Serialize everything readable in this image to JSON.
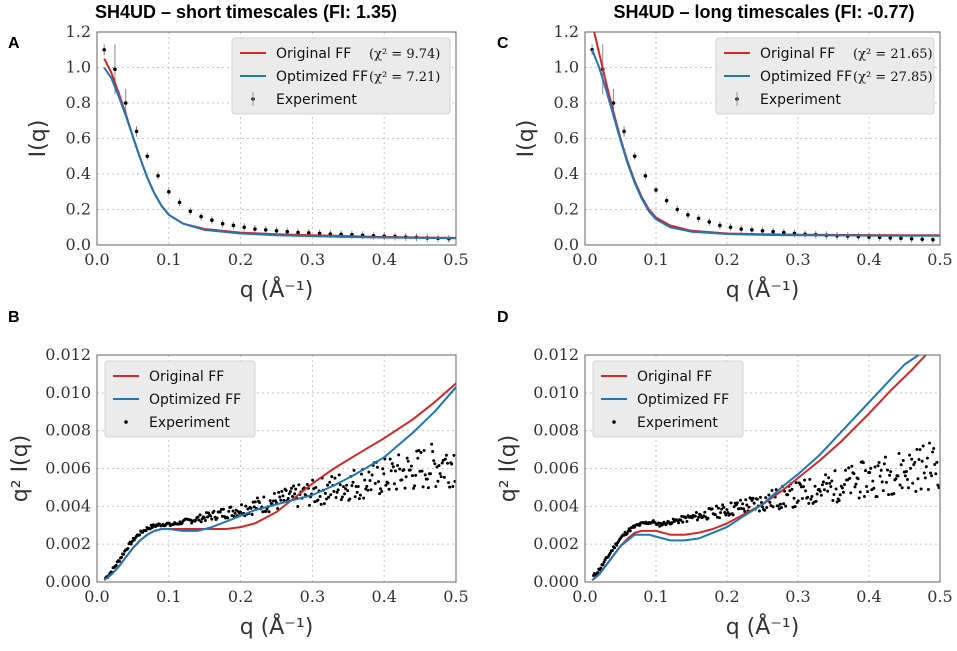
{
  "colors": {
    "original": "#d62728",
    "optimized": "#1f77b4",
    "experiment": "#000000",
    "legend_bg": "#ebebeb"
  },
  "chart_data": [
    {
      "id": "A",
      "type": "line",
      "panel_label": "A",
      "title": "SH4UD – short timescales  (FI: 1.35)",
      "xlabel": "q (Å⁻¹)",
      "ylabel": "I(q)",
      "xlim": [
        0,
        0.5
      ],
      "ylim": [
        0,
        1.2
      ],
      "xticks": [
        0.0,
        0.1,
        0.2,
        0.3,
        0.4,
        0.5
      ],
      "yticks": [
        0.0,
        0.2,
        0.4,
        0.6,
        0.8,
        1.0,
        1.2
      ],
      "xtick_labels": [
        "0.0",
        "0.1",
        "0.2",
        "0.3",
        "0.4",
        "0.5"
      ],
      "ytick_labels": [
        "0.0",
        "0.2",
        "0.4",
        "0.6",
        "0.8",
        "1.0",
        "1.2"
      ],
      "legend": {
        "position": "top-right",
        "entries": [
          {
            "label": "Original FF",
            "chi": "(χ² = 9.74)"
          },
          {
            "label": "Optimized FF",
            "chi": "(χ² = 7.21)"
          },
          {
            "label": "Experiment",
            "chi": ""
          }
        ]
      },
      "series": [
        {
          "name": "Original FF",
          "x": [
            0.01,
            0.02,
            0.03,
            0.04,
            0.05,
            0.06,
            0.07,
            0.08,
            0.09,
            0.1,
            0.12,
            0.15,
            0.2,
            0.25,
            0.3,
            0.35,
            0.4,
            0.45,
            0.5
          ],
          "y": [
            1.05,
            0.97,
            0.86,
            0.74,
            0.61,
            0.49,
            0.38,
            0.29,
            0.22,
            0.17,
            0.12,
            0.09,
            0.07,
            0.06,
            0.055,
            0.05,
            0.045,
            0.042,
            0.04
          ]
        },
        {
          "name": "Optimized FF",
          "x": [
            0.01,
            0.02,
            0.03,
            0.04,
            0.05,
            0.06,
            0.07,
            0.08,
            0.09,
            0.1,
            0.12,
            0.15,
            0.2,
            0.25,
            0.3,
            0.35,
            0.4,
            0.45,
            0.5
          ],
          "y": [
            1.0,
            0.94,
            0.84,
            0.73,
            0.61,
            0.49,
            0.38,
            0.29,
            0.22,
            0.17,
            0.12,
            0.085,
            0.065,
            0.055,
            0.05,
            0.045,
            0.042,
            0.04,
            0.038
          ]
        },
        {
          "name": "Experiment",
          "x": [
            0.01,
            0.025,
            0.04,
            0.055,
            0.07,
            0.085,
            0.1,
            0.115,
            0.13,
            0.145,
            0.16,
            0.175,
            0.19,
            0.205,
            0.22,
            0.235,
            0.25,
            0.265,
            0.28,
            0.295,
            0.31,
            0.325,
            0.34,
            0.355,
            0.37,
            0.385,
            0.4,
            0.415,
            0.43,
            0.445,
            0.46,
            0.475,
            0.49
          ],
          "y": [
            1.1,
            0.99,
            0.8,
            0.64,
            0.5,
            0.39,
            0.3,
            0.24,
            0.19,
            0.16,
            0.14,
            0.12,
            0.11,
            0.1,
            0.09,
            0.085,
            0.08,
            0.075,
            0.07,
            0.068,
            0.065,
            0.062,
            0.06,
            0.058,
            0.055,
            0.052,
            0.05,
            0.048,
            0.045,
            0.043,
            0.04,
            0.038,
            0.035
          ]
        }
      ]
    },
    {
      "id": "C",
      "type": "line",
      "panel_label": "C",
      "title": "SH4UD – long timescales  (FI: -0.77)",
      "xlabel": "q (Å⁻¹)",
      "ylabel": "I(q)",
      "xlim": [
        0,
        0.5
      ],
      "ylim": [
        0,
        1.2
      ],
      "xticks": [
        0.0,
        0.1,
        0.2,
        0.3,
        0.4,
        0.5
      ],
      "yticks": [
        0.0,
        0.2,
        0.4,
        0.6,
        0.8,
        1.0,
        1.2
      ],
      "xtick_labels": [
        "0.0",
        "0.1",
        "0.2",
        "0.3",
        "0.4",
        "0.5"
      ],
      "ytick_labels": [
        "0.0",
        "0.2",
        "0.4",
        "0.6",
        "0.8",
        "1.0",
        "1.2"
      ],
      "legend": {
        "position": "top-right",
        "entries": [
          {
            "label": "Original FF",
            "chi": "(χ² = 21.65)"
          },
          {
            "label": "Optimized FF",
            "chi": "(χ² = 27.85)"
          },
          {
            "label": "Experiment",
            "chi": ""
          }
        ]
      },
      "series": [
        {
          "name": "Original FF",
          "x": [
            0.01,
            0.02,
            0.03,
            0.04,
            0.05,
            0.06,
            0.07,
            0.08,
            0.09,
            0.1,
            0.12,
            0.15,
            0.2,
            0.25,
            0.3,
            0.35,
            0.4,
            0.45,
            0.5
          ],
          "y": [
            1.25,
            1.08,
            0.91,
            0.75,
            0.6,
            0.47,
            0.36,
            0.27,
            0.2,
            0.155,
            0.11,
            0.08,
            0.065,
            0.06,
            0.058,
            0.057,
            0.056,
            0.055,
            0.055
          ]
        },
        {
          "name": "Optimized FF",
          "x": [
            0.01,
            0.02,
            0.03,
            0.04,
            0.05,
            0.06,
            0.07,
            0.08,
            0.09,
            0.1,
            0.12,
            0.15,
            0.2,
            0.25,
            0.3,
            0.35,
            0.4,
            0.45,
            0.5
          ],
          "y": [
            1.1,
            1.0,
            0.87,
            0.73,
            0.59,
            0.46,
            0.35,
            0.26,
            0.19,
            0.145,
            0.1,
            0.075,
            0.062,
            0.057,
            0.055,
            0.054,
            0.053,
            0.052,
            0.052
          ]
        },
        {
          "name": "Experiment",
          "x": [
            0.01,
            0.025,
            0.04,
            0.055,
            0.07,
            0.085,
            0.1,
            0.115,
            0.13,
            0.145,
            0.16,
            0.175,
            0.19,
            0.205,
            0.22,
            0.235,
            0.25,
            0.265,
            0.28,
            0.295,
            0.31,
            0.325,
            0.34,
            0.355,
            0.37,
            0.385,
            0.4,
            0.415,
            0.43,
            0.445,
            0.46,
            0.475,
            0.49
          ],
          "y": [
            1.1,
            0.99,
            0.8,
            0.64,
            0.5,
            0.39,
            0.31,
            0.25,
            0.2,
            0.17,
            0.15,
            0.13,
            0.11,
            0.1,
            0.09,
            0.085,
            0.08,
            0.075,
            0.07,
            0.065,
            0.06,
            0.058,
            0.055,
            0.052,
            0.05,
            0.048,
            0.045,
            0.043,
            0.04,
            0.038,
            0.035,
            0.033,
            0.03
          ]
        }
      ]
    },
    {
      "id": "B",
      "type": "line",
      "panel_label": "B",
      "title": "",
      "xlabel": "q (Å⁻¹)",
      "ylabel": "q² I(q)",
      "xlim": [
        0,
        0.5
      ],
      "ylim": [
        0,
        0.012
      ],
      "xticks": [
        0.0,
        0.1,
        0.2,
        0.3,
        0.4,
        0.5
      ],
      "yticks": [
        0.0,
        0.002,
        0.004,
        0.006,
        0.008,
        0.01,
        0.012
      ],
      "xtick_labels": [
        "0.0",
        "0.1",
        "0.2",
        "0.3",
        "0.4",
        "0.5"
      ],
      "ytick_labels": [
        "0.000",
        "0.002",
        "0.004",
        "0.006",
        "0.008",
        "0.010",
        "0.012"
      ],
      "legend": {
        "position": "top-left",
        "entries": [
          {
            "label": "Original FF",
            "chi": ""
          },
          {
            "label": "Optimized FF",
            "chi": ""
          },
          {
            "label": "Experiment",
            "chi": ""
          }
        ]
      },
      "series": [
        {
          "name": "Original FF",
          "x": [
            0.01,
            0.02,
            0.03,
            0.04,
            0.05,
            0.06,
            0.07,
            0.08,
            0.09,
            0.1,
            0.12,
            0.14,
            0.16,
            0.18,
            0.2,
            0.22,
            0.25,
            0.28,
            0.3,
            0.33,
            0.36,
            0.4,
            0.44,
            0.47,
            0.5
          ],
          "y": [
            0.0001,
            0.0004,
            0.0008,
            0.0013,
            0.0018,
            0.0022,
            0.0025,
            0.0027,
            0.0028,
            0.0028,
            0.0028,
            0.0028,
            0.0028,
            0.0028,
            0.0029,
            0.0031,
            0.0037,
            0.0046,
            0.0052,
            0.006,
            0.0067,
            0.0076,
            0.0086,
            0.0095,
            0.0105
          ]
        },
        {
          "name": "Optimized FF",
          "x": [
            0.01,
            0.02,
            0.03,
            0.04,
            0.05,
            0.06,
            0.07,
            0.08,
            0.09,
            0.1,
            0.12,
            0.14,
            0.16,
            0.18,
            0.2,
            0.22,
            0.25,
            0.28,
            0.3,
            0.33,
            0.36,
            0.4,
            0.44,
            0.47,
            0.5
          ],
          "y": [
            0.0001,
            0.0004,
            0.0008,
            0.0013,
            0.0018,
            0.0022,
            0.0025,
            0.0027,
            0.0028,
            0.0028,
            0.0027,
            0.0027,
            0.0029,
            0.0032,
            0.0035,
            0.0038,
            0.0041,
            0.0044,
            0.0046,
            0.0051,
            0.0057,
            0.0066,
            0.0079,
            0.009,
            0.0103
          ]
        }
      ],
      "scatter_seed": 7,
      "scatter_model": "q2I-short"
    },
    {
      "id": "D",
      "type": "line",
      "panel_label": "D",
      "title": "",
      "xlabel": "q (Å⁻¹)",
      "ylabel": "q² I(q)",
      "xlim": [
        0,
        0.5
      ],
      "ylim": [
        0,
        0.012
      ],
      "xticks": [
        0.0,
        0.1,
        0.2,
        0.3,
        0.4,
        0.5
      ],
      "yticks": [
        0.0,
        0.002,
        0.004,
        0.006,
        0.008,
        0.01,
        0.012
      ],
      "xtick_labels": [
        "0.0",
        "0.1",
        "0.2",
        "0.3",
        "0.4",
        "0.5"
      ],
      "ytick_labels": [
        "0.000",
        "0.002",
        "0.004",
        "0.006",
        "0.008",
        "0.010",
        "0.012"
      ],
      "legend": {
        "position": "top-left",
        "entries": [
          {
            "label": "Original FF",
            "chi": ""
          },
          {
            "label": "Optimized FF",
            "chi": ""
          },
          {
            "label": "Experiment",
            "chi": ""
          }
        ]
      },
      "series": [
        {
          "name": "Original FF",
          "x": [
            0.01,
            0.02,
            0.03,
            0.04,
            0.05,
            0.06,
            0.07,
            0.08,
            0.09,
            0.1,
            0.12,
            0.14,
            0.16,
            0.18,
            0.2,
            0.22,
            0.25,
            0.28,
            0.3,
            0.33,
            0.36,
            0.4,
            0.43,
            0.46,
            0.48
          ],
          "y": [
            0.0001,
            0.0004,
            0.0009,
            0.0014,
            0.0019,
            0.0023,
            0.0026,
            0.0027,
            0.0027,
            0.0027,
            0.0025,
            0.0025,
            0.0026,
            0.0028,
            0.0031,
            0.0035,
            0.0041,
            0.0049,
            0.0055,
            0.0064,
            0.0074,
            0.0089,
            0.0101,
            0.0112,
            0.012
          ]
        },
        {
          "name": "Optimized FF",
          "x": [
            0.01,
            0.02,
            0.03,
            0.04,
            0.05,
            0.06,
            0.07,
            0.08,
            0.09,
            0.1,
            0.12,
            0.14,
            0.16,
            0.18,
            0.2,
            0.22,
            0.25,
            0.28,
            0.3,
            0.33,
            0.36,
            0.4,
            0.43,
            0.45,
            0.47
          ],
          "y": [
            0.0001,
            0.0004,
            0.0009,
            0.0014,
            0.0019,
            0.0022,
            0.0025,
            0.0025,
            0.0025,
            0.0024,
            0.0022,
            0.0022,
            0.0023,
            0.0026,
            0.0029,
            0.0034,
            0.0041,
            0.0051,
            0.0057,
            0.0067,
            0.0079,
            0.0095,
            0.0107,
            0.0115,
            0.012
          ]
        }
      ],
      "scatter_seed": 11,
      "scatter_model": "q2I-long"
    }
  ]
}
